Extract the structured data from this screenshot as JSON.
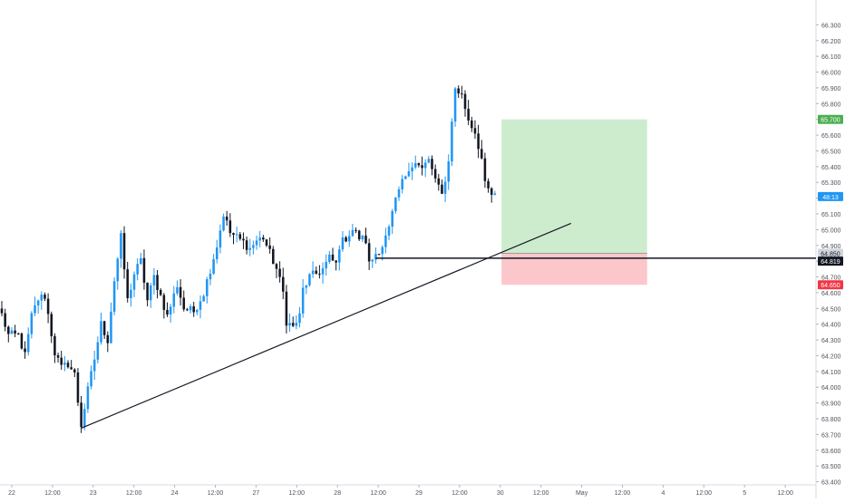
{
  "chart_data": {
    "type": "candlestick",
    "y_axis": {
      "ticks": [
        "66.300",
        "66.200",
        "66.100",
        "66.000",
        "65.900",
        "65.800",
        "65.700",
        "65.600",
        "65.500",
        "65.400",
        "65.300",
        "65.200",
        "65.100",
        "65.000",
        "64.900",
        "64.800",
        "64.700",
        "64.600",
        "64.500",
        "64.400",
        "64.300",
        "64.200",
        "64.100",
        "64.000",
        "63.900",
        "63.800",
        "63.700",
        "63.600",
        "63.500",
        "63.400"
      ],
      "ylim": [
        63.38,
        66.4
      ]
    },
    "x_axis": {
      "ticks": [
        "22",
        "12:00",
        "23",
        "12:00",
        "24",
        "12:00",
        "27",
        "12:00",
        "28",
        "12:00",
        "29",
        "12:00",
        "30",
        "12:00",
        "May",
        "12:00",
        "4",
        "12:00",
        "5",
        "12:00"
      ],
      "num_bars": 245
    },
    "price_labels": {
      "target": "65.700",
      "countdown": "48:13",
      "entry": "64.850",
      "last_line": "64.819",
      "stop": "64.650"
    },
    "position": {
      "entry": 64.85,
      "target": 65.7,
      "stop": 64.65,
      "start_bar": 151,
      "end_bar": 195
    },
    "horizontal_line": {
      "price": 64.819,
      "from_bar": 113
    },
    "trend_line": {
      "from": {
        "bar": 24,
        "price": 63.74
      },
      "to": {
        "bar": 172,
        "price": 65.04
      }
    },
    "anchors": [
      [
        0,
        64.46
      ],
      [
        2,
        64.33
      ],
      [
        5,
        64.33
      ],
      [
        7,
        64.2
      ],
      [
        9,
        64.45
      ],
      [
        11,
        64.56
      ],
      [
        13,
        64.58
      ],
      [
        14,
        64.46
      ],
      [
        16,
        64.22
      ],
      [
        18,
        64.12
      ],
      [
        20,
        64.15
      ],
      [
        22,
        64.08
      ],
      [
        23,
        63.91
      ],
      [
        24,
        63.76
      ],
      [
        26,
        63.98
      ],
      [
        28,
        64.18
      ],
      [
        30,
        64.4
      ],
      [
        32,
        64.3
      ],
      [
        34,
        64.68
      ],
      [
        36,
        64.95
      ],
      [
        38,
        64.55
      ],
      [
        40,
        64.72
      ],
      [
        42,
        64.8
      ],
      [
        44,
        64.55
      ],
      [
        46,
        64.7
      ],
      [
        48,
        64.58
      ],
      [
        50,
        64.45
      ],
      [
        53,
        64.65
      ],
      [
        55,
        64.5
      ],
      [
        58,
        64.48
      ],
      [
        61,
        64.6
      ],
      [
        63,
        64.75
      ],
      [
        65,
        64.9
      ],
      [
        67,
        65.1
      ],
      [
        69,
        64.98
      ],
      [
        71,
        64.95
      ],
      [
        73,
        64.92
      ],
      [
        75,
        64.88
      ],
      [
        77,
        64.93
      ],
      [
        79,
        64.95
      ],
      [
        81,
        64.85
      ],
      [
        83,
        64.75
      ],
      [
        85,
        64.6
      ],
      [
        86,
        64.42
      ],
      [
        88,
        64.38
      ],
      [
        90,
        64.45
      ],
      [
        91,
        64.62
      ],
      [
        93,
        64.7
      ],
      [
        95,
        64.72
      ],
      [
        97,
        64.75
      ],
      [
        99,
        64.82
      ],
      [
        101,
        64.78
      ],
      [
        102,
        64.9
      ],
      [
        104,
        64.95
      ],
      [
        106,
        65.0
      ],
      [
        108,
        64.95
      ],
      [
        110,
        64.93
      ],
      [
        111,
        64.78
      ],
      [
        113,
        64.85
      ],
      [
        115,
        64.9
      ],
      [
        117,
        65.0
      ],
      [
        118,
        65.1
      ],
      [
        120,
        65.25
      ],
      [
        121,
        65.3
      ],
      [
        123,
        65.4
      ],
      [
        125,
        65.42
      ],
      [
        127,
        65.38
      ],
      [
        129,
        65.45
      ],
      [
        131,
        65.3
      ],
      [
        133,
        65.25
      ],
      [
        134,
        65.3
      ],
      [
        135,
        65.45
      ],
      [
        137,
        65.9
      ],
      [
        139,
        65.85
      ],
      [
        141,
        65.7
      ],
      [
        143,
        65.62
      ],
      [
        145,
        65.45
      ],
      [
        146,
        65.28
      ],
      [
        148,
        65.22
      ],
      [
        149,
        65.21
      ]
    ]
  }
}
